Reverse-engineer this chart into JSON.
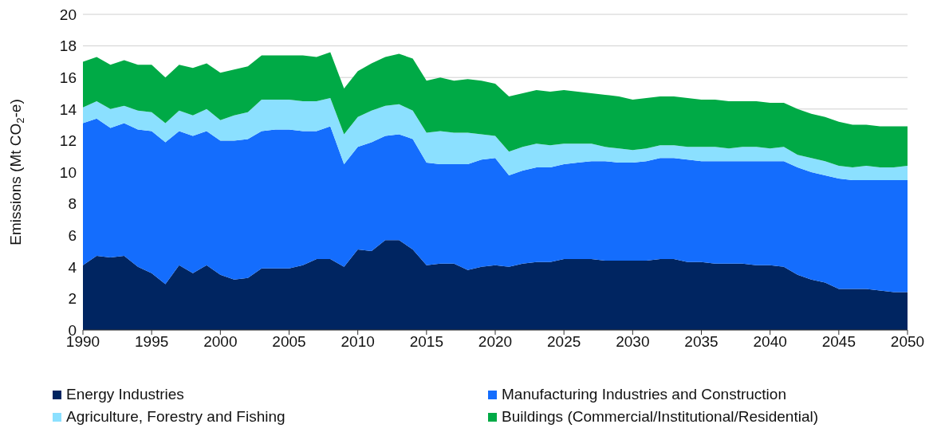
{
  "chart_data": {
    "type": "area",
    "stacked": true,
    "ylabel": "Emissions (Mt CO$_{2}$-e)",
    "x": [
      1990,
      1991,
      1992,
      1993,
      1994,
      1995,
      1996,
      1997,
      1998,
      1999,
      2000,
      2001,
      2002,
      2003,
      2004,
      2005,
      2006,
      2007,
      2008,
      2009,
      2010,
      2011,
      2012,
      2013,
      2014,
      2015,
      2016,
      2017,
      2018,
      2019,
      2020,
      2021,
      2022,
      2023,
      2024,
      2025,
      2026,
      2027,
      2028,
      2029,
      2030,
      2031,
      2032,
      2033,
      2034,
      2035,
      2036,
      2037,
      2038,
      2039,
      2040,
      2041,
      2042,
      2043,
      2044,
      2045,
      2046,
      2047,
      2048,
      2049,
      2050
    ],
    "series": [
      {
        "name": "Energy Industries",
        "color": "#002561",
        "values": [
          4.1,
          4.7,
          4.6,
          4.7,
          4.0,
          3.6,
          2.9,
          4.1,
          3.6,
          4.1,
          3.5,
          3.2,
          3.3,
          3.9,
          3.9,
          3.9,
          4.1,
          4.5,
          4.5,
          4.0,
          5.1,
          5.0,
          5.7,
          5.7,
          5.1,
          4.1,
          4.2,
          4.2,
          3.8,
          4.0,
          4.1,
          4.0,
          4.2,
          4.3,
          4.3,
          4.5,
          4.5,
          4.5,
          4.4,
          4.4,
          4.4,
          4.4,
          4.5,
          4.5,
          4.3,
          4.3,
          4.2,
          4.2,
          4.2,
          4.1,
          4.1,
          4.0,
          3.5,
          3.2,
          3.0,
          2.6,
          2.6,
          2.6,
          2.5,
          2.4,
          2.4
        ]
      },
      {
        "name": "Manufacturing Industries and Construction",
        "color": "#146dfd",
        "values": [
          9.0,
          8.7,
          8.2,
          8.4,
          8.7,
          9.0,
          9.0,
          8.5,
          8.7,
          8.5,
          8.5,
          8.8,
          8.8,
          8.7,
          8.8,
          8.8,
          8.5,
          8.1,
          8.4,
          6.5,
          6.5,
          6.9,
          6.6,
          6.7,
          7.0,
          6.5,
          6.3,
          6.3,
          6.7,
          6.8,
          6.8,
          5.8,
          5.9,
          6.0,
          6.0,
          6.0,
          6.1,
          6.2,
          6.3,
          6.2,
          6.2,
          6.3,
          6.4,
          6.4,
          6.5,
          6.4,
          6.5,
          6.5,
          6.5,
          6.6,
          6.6,
          6.7,
          6.8,
          6.8,
          6.8,
          7.0,
          6.9,
          6.9,
          7.0,
          7.1,
          7.1
        ]
      },
      {
        "name": "Agriculture, Forestry and Fishing",
        "color": "#8be0ff",
        "values": [
          1.0,
          1.1,
          1.2,
          1.1,
          1.2,
          1.2,
          1.2,
          1.3,
          1.3,
          1.4,
          1.3,
          1.6,
          1.7,
          2.0,
          1.9,
          1.9,
          1.9,
          1.9,
          1.8,
          1.9,
          1.9,
          2.0,
          1.9,
          1.9,
          1.8,
          1.9,
          2.1,
          2.0,
          2.0,
          1.6,
          1.4,
          1.5,
          1.5,
          1.5,
          1.4,
          1.3,
          1.2,
          1.1,
          0.9,
          0.9,
          0.8,
          0.8,
          0.8,
          0.8,
          0.8,
          0.9,
          0.9,
          0.8,
          0.9,
          0.9,
          0.8,
          0.9,
          0.8,
          0.9,
          0.9,
          0.8,
          0.8,
          0.9,
          0.8,
          0.8,
          0.9
        ]
      },
      {
        "name": "Buildings (Commercial/Institutional/Residential)",
        "color": "#00aa46",
        "values": [
          2.9,
          2.8,
          2.8,
          2.9,
          2.9,
          3.0,
          2.9,
          2.9,
          3.0,
          2.9,
          3.0,
          2.9,
          2.9,
          2.8,
          2.8,
          2.8,
          2.9,
          2.8,
          2.9,
          2.9,
          2.9,
          3.0,
          3.1,
          3.2,
          3.3,
          3.3,
          3.4,
          3.3,
          3.4,
          3.4,
          3.3,
          3.5,
          3.4,
          3.4,
          3.4,
          3.4,
          3.3,
          3.2,
          3.3,
          3.3,
          3.2,
          3.2,
          3.1,
          3.1,
          3.1,
          3.0,
          3.0,
          3.0,
          2.9,
          2.9,
          2.9,
          2.8,
          2.9,
          2.8,
          2.8,
          2.8,
          2.7,
          2.6,
          2.6,
          2.6,
          2.5
        ]
      }
    ],
    "xlim": [
      1990,
      2050
    ],
    "xticks": [
      1990,
      1995,
      2000,
      2005,
      2010,
      2015,
      2020,
      2025,
      2030,
      2035,
      2040,
      2045,
      2050
    ],
    "ylim": [
      0,
      20
    ],
    "yticks": [
      0,
      2,
      4,
      6,
      8,
      10,
      12,
      14,
      16,
      18,
      20
    ],
    "grid": "y",
    "legend": "bottom"
  }
}
